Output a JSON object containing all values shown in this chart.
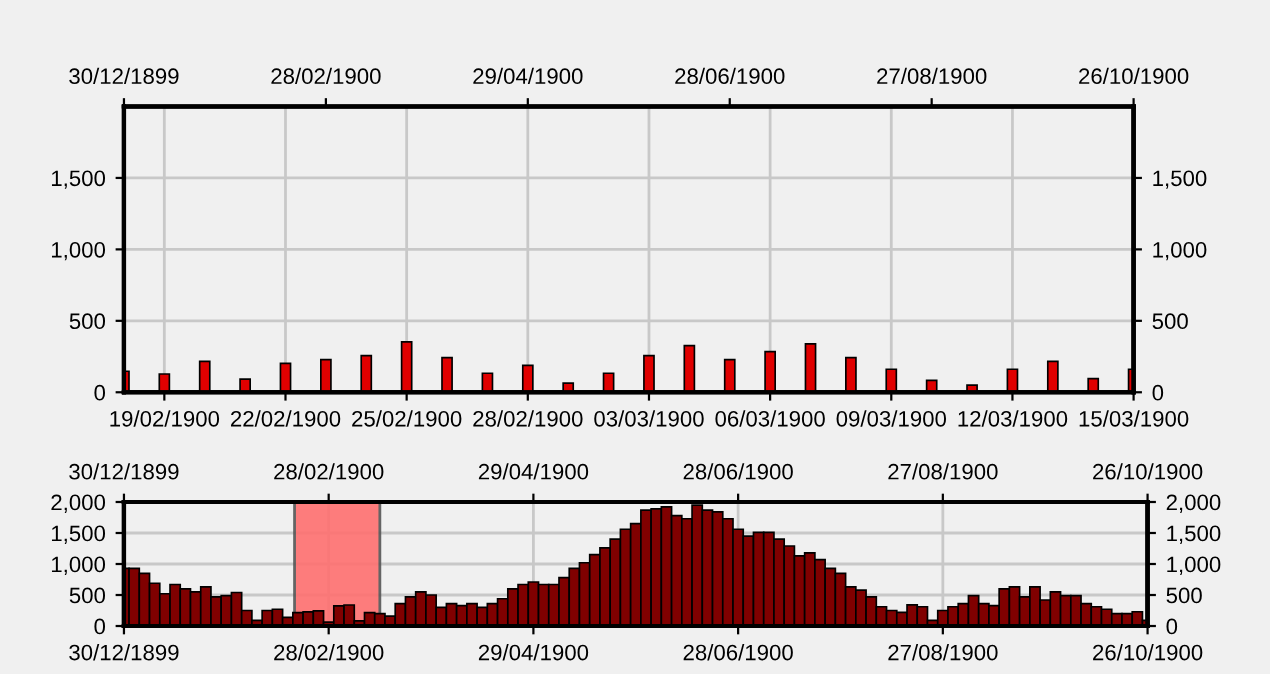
{
  "chart_data": [
    {
      "type": "bar",
      "x": [
        "1900-02-18",
        "1900-02-19",
        "1900-02-20",
        "1900-02-21",
        "1900-02-22",
        "1900-02-23",
        "1900-02-24",
        "1900-02-25",
        "1900-02-26",
        "1900-02-27",
        "1900-02-28",
        "1900-03-01",
        "1900-03-02",
        "1900-03-03",
        "1900-03-04",
        "1900-03-05",
        "1900-03-06",
        "1900-03-07",
        "1900-03-08",
        "1900-03-09",
        "1900-03-10",
        "1900-03-11",
        "1900-03-12",
        "1900-03-13",
        "1900-03-14",
        "1900-03-15"
      ],
      "values": [
        147,
        128,
        216,
        92,
        202,
        229,
        257,
        353,
        243,
        133,
        188,
        64,
        133,
        257,
        326,
        229,
        284,
        339,
        243,
        161,
        83,
        50,
        161,
        216,
        96,
        161
      ],
      "color": "#e00000",
      "xlim": [
        "1900-02-18",
        "1900-03-15"
      ],
      "xticks": [
        {
          "value": "1900-02-19",
          "label": "19/02/1900"
        },
        {
          "value": "1900-02-22",
          "label": "22/02/1900"
        },
        {
          "value": "1900-02-25",
          "label": "25/02/1900"
        },
        {
          "value": "1900-02-28",
          "label": "28/02/1900"
        },
        {
          "value": "1900-03-03",
          "label": "03/03/1900"
        },
        {
          "value": "1900-03-06",
          "label": "06/03/1900"
        },
        {
          "value": "1900-03-09",
          "label": "09/03/1900"
        },
        {
          "value": "1900-03-12",
          "label": "12/03/1900"
        },
        {
          "value": "1900-03-15",
          "label": "15/03/1900"
        }
      ],
      "x2lim": [
        "1899-12-30",
        "1900-10-26"
      ],
      "x2ticks": [
        {
          "value": "1899-12-30",
          "label": "30/12/1899"
        },
        {
          "value": "1900-02-28",
          "label": "28/02/1900"
        },
        {
          "value": "1900-04-29",
          "label": "29/04/1900"
        },
        {
          "value": "1900-06-28",
          "label": "28/06/1900"
        },
        {
          "value": "1900-08-27",
          "label": "27/08/1900"
        },
        {
          "value": "1900-10-26",
          "label": "26/10/1900"
        }
      ],
      "ylim": [
        0,
        2000
      ],
      "yticks": [
        0,
        500,
        {
          "value": 1000,
          "label": "1,000"
        },
        {
          "value": 1500,
          "label": "1,500"
        }
      ],
      "y2lim": [
        0,
        2000
      ],
      "y2ticks": [
        0,
        500,
        {
          "value": 1000,
          "label": "1,000"
        },
        {
          "value": 1500,
          "label": "1,500"
        }
      ],
      "grid": true,
      "legend": false
    },
    {
      "type": "bar",
      "x": [
        "1899-12-30",
        "1900-01-02",
        "1900-01-05",
        "1900-01-08",
        "1900-01-11",
        "1900-01-14",
        "1900-01-17",
        "1900-01-20",
        "1900-01-23",
        "1900-01-26",
        "1900-01-29",
        "1900-02-01",
        "1900-02-04",
        "1900-02-07",
        "1900-02-10",
        "1900-02-13",
        "1900-02-16",
        "1900-02-19",
        "1900-02-22",
        "1900-02-25",
        "1900-02-28",
        "1900-03-03",
        "1900-03-06",
        "1900-03-09",
        "1900-03-12",
        "1900-03-15",
        "1900-03-18",
        "1900-03-21",
        "1900-03-24",
        "1900-03-27",
        "1900-03-30",
        "1900-04-02",
        "1900-04-05",
        "1900-04-08",
        "1900-04-11",
        "1900-04-14",
        "1900-04-17",
        "1900-04-20",
        "1900-04-23",
        "1900-04-26",
        "1900-04-29",
        "1900-05-02",
        "1900-05-05",
        "1900-05-08",
        "1900-05-11",
        "1900-05-14",
        "1900-05-17",
        "1900-05-20",
        "1900-05-23",
        "1900-05-26",
        "1900-05-29",
        "1900-06-01",
        "1900-06-04",
        "1900-06-07",
        "1900-06-10",
        "1900-06-13",
        "1900-06-16",
        "1900-06-19",
        "1900-06-22",
        "1900-06-25",
        "1900-06-28",
        "1900-07-01",
        "1900-07-04",
        "1900-07-07",
        "1900-07-10",
        "1900-07-13",
        "1900-07-16",
        "1900-07-19",
        "1900-07-22",
        "1900-07-25",
        "1900-07-28",
        "1900-07-31",
        "1900-08-03",
        "1900-08-06",
        "1900-08-09",
        "1900-08-12",
        "1900-08-15",
        "1900-08-18",
        "1900-08-21",
        "1900-08-24",
        "1900-08-27",
        "1900-08-30",
        "1900-09-02",
        "1900-09-05",
        "1900-09-08",
        "1900-09-11",
        "1900-09-14",
        "1900-09-17",
        "1900-09-20",
        "1900-09-23",
        "1900-09-26",
        "1900-09-29",
        "1900-10-02",
        "1900-10-05",
        "1900-10-08",
        "1900-10-11",
        "1900-10-14",
        "1900-10-17",
        "1900-10-20",
        "1900-10-23",
        "1900-10-26"
      ],
      "values": [
        930,
        930,
        850,
        690,
        520,
        670,
        600,
        550,
        630,
        470,
        490,
        540,
        250,
        90,
        250,
        270,
        140,
        216,
        229,
        243,
        64,
        326,
        339,
        83,
        216,
        200,
        160,
        360,
        470,
        550,
        500,
        300,
        360,
        330,
        360,
        300,
        360,
        440,
        600,
        670,
        710,
        670,
        670,
        780,
        930,
        1020,
        1150,
        1260,
        1400,
        1560,
        1650,
        1870,
        1890,
        1920,
        1780,
        1730,
        1950,
        1870,
        1840,
        1730,
        1560,
        1450,
        1510,
        1510,
        1400,
        1290,
        1130,
        1180,
        1070,
        930,
        850,
        630,
        580,
        470,
        310,
        250,
        220,
        340,
        310,
        90,
        250,
        310,
        360,
        490,
        360,
        330,
        600,
        630,
        470,
        630,
        420,
        550,
        490,
        490,
        360,
        310,
        270,
        200,
        200,
        230,
        90
      ],
      "color": "#800000",
      "xlim": [
        "1899-12-30",
        "1900-10-26"
      ],
      "xticks": [
        {
          "value": "1899-12-30",
          "label": "30/12/1899"
        },
        {
          "value": "1900-02-28",
          "label": "28/02/1900"
        },
        {
          "value": "1900-04-29",
          "label": "29/04/1900"
        },
        {
          "value": "1900-06-28",
          "label": "28/06/1900"
        },
        {
          "value": "1900-08-27",
          "label": "27/08/1900"
        },
        {
          "value": "1900-10-26",
          "label": "26/10/1900"
        }
      ],
      "x2lim": [
        "1899-12-30",
        "1900-10-26"
      ],
      "x2ticks": [
        {
          "value": "1899-12-30",
          "label": "30/12/1899"
        },
        {
          "value": "1900-02-28",
          "label": "28/02/1900"
        },
        {
          "value": "1900-04-29",
          "label": "29/04/1900"
        },
        {
          "value": "1900-06-28",
          "label": "28/06/1900"
        },
        {
          "value": "1900-08-27",
          "label": "27/08/1900"
        },
        {
          "value": "1900-10-26",
          "label": "26/10/1900"
        }
      ],
      "ylim": [
        0,
        2000
      ],
      "yticks": [
        0,
        500,
        {
          "value": 1000,
          "label": "1,000"
        },
        {
          "value": 1500,
          "label": "1,500"
        },
        {
          "value": 2000,
          "label": "2,000"
        }
      ],
      "y2lim": [
        0,
        2000
      ],
      "y2ticks": [
        0,
        500,
        {
          "value": 1000,
          "label": "1,000"
        },
        {
          "value": 1500,
          "label": "1,500"
        },
        {
          "value": 2000,
          "label": "2,000"
        }
      ],
      "bands": [
        {
          "axis": "x",
          "from": "1900-02-18",
          "to": "1900-03-15",
          "color": "#ff7070"
        }
      ],
      "grid": true,
      "legend": false
    }
  ]
}
